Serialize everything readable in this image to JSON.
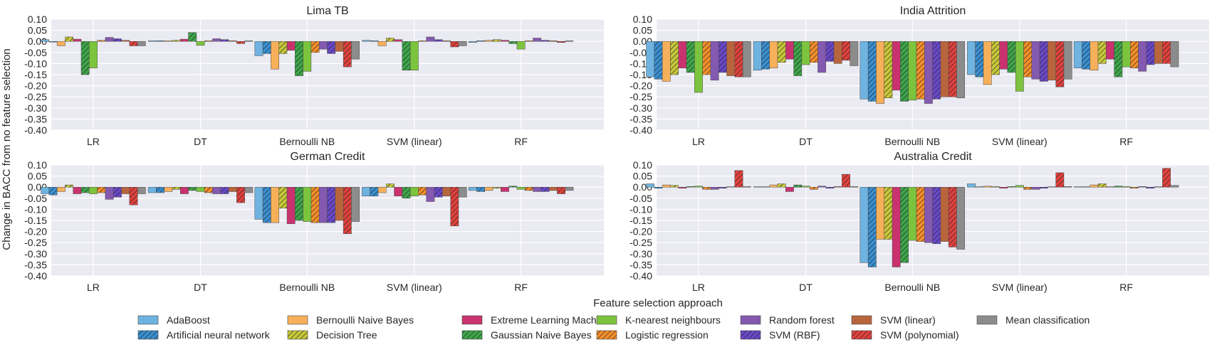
{
  "figure": {
    "ylabel": "Change in BACC from no feature selection",
    "xlabel": "Feature selection approach"
  },
  "legend": [
    {
      "name": "AdaBoost",
      "color": "#6fb3e0",
      "hatch": false
    },
    {
      "name": "Artificial neural network",
      "color": "#3a8fd0",
      "hatch": true
    },
    {
      "name": "Bernoulli Naive Bayes",
      "color": "#f7b05a",
      "hatch": false
    },
    {
      "name": "Decision Tree",
      "color": "#c8c83a",
      "hatch": true
    },
    {
      "name": "Extreme Learning Machine",
      "color": "#c8336f",
      "hatch": false
    },
    {
      "name": "Gaussian Naive Bayes",
      "color": "#3ea54a",
      "hatch": true
    },
    {
      "name": "K-nearest neighbours",
      "color": "#7cc43d",
      "hatch": false
    },
    {
      "name": "Logistic regression",
      "color": "#f58f2a",
      "hatch": true
    },
    {
      "name": "Random forest",
      "color": "#8459b0",
      "hatch": false
    },
    {
      "name": "SVM (RBF)",
      "color": "#6a48c8",
      "hatch": true
    },
    {
      "name": "SVM (linear)",
      "color": "#b8653d",
      "hatch": false
    },
    {
      "name": "SVM (polynomial)",
      "color": "#e0413d",
      "hatch": true
    },
    {
      "name": "Mean classification",
      "color": "#8c8c8c",
      "hatch": false
    }
  ],
  "chart_data": [
    {
      "type": "bar",
      "title": "Lima TB",
      "categories": [
        "LR",
        "DT",
        "Bernoulli NB",
        "SVM (linear)",
        "RF"
      ],
      "ylim": [
        -0.4,
        0.1
      ],
      "yticks": [
        "0.10",
        "0.05",
        "0.00",
        "-0.05",
        "-0.10",
        "-0.15",
        "-0.20",
        "-0.25",
        "-0.30",
        "-0.35",
        "-0.40"
      ],
      "values": [
        [
          0.008,
          -0.003,
          -0.02,
          0.02,
          0.01,
          -0.15,
          -0.12,
          0.005,
          0.018,
          0.012,
          0.005,
          -0.02,
          -0.02
        ],
        [
          0.003,
          0.003,
          0.003,
          0.005,
          0.01,
          0.04,
          -0.018,
          0.003,
          0.012,
          0.008,
          0.003,
          -0.01,
          0.003
        ],
        [
          -0.065,
          -0.055,
          -0.125,
          -0.055,
          -0.04,
          -0.155,
          -0.135,
          -0.05,
          -0.035,
          -0.055,
          -0.045,
          -0.115,
          -0.08
        ],
        [
          0.005,
          0.003,
          -0.02,
          0.015,
          0.008,
          -0.13,
          -0.13,
          0.003,
          0.02,
          0.008,
          0.003,
          -0.025,
          -0.02
        ],
        [
          -0.005,
          0.003,
          0.005,
          0.008,
          0.005,
          -0.01,
          -0.035,
          0.003,
          0.015,
          0.005,
          0.003,
          -0.005,
          0.003
        ]
      ]
    },
    {
      "type": "bar",
      "title": "India Attrition",
      "categories": [
        "LR",
        "DT",
        "Bernoulli NB",
        "SVM (linear)",
        "RF"
      ],
      "ylim": [
        -0.4,
        0.1
      ],
      "yticks": [
        "0.10",
        "0.05",
        "0.00",
        "-0.05",
        "-0.10",
        "-0.15",
        "-0.20",
        "-0.25",
        "-0.30",
        "-0.35",
        "-0.40"
      ],
      "values": [
        [
          -0.16,
          -0.17,
          -0.18,
          -0.15,
          -0.12,
          -0.14,
          -0.23,
          -0.15,
          -0.175,
          -0.14,
          -0.155,
          -0.16,
          -0.16
        ],
        [
          -0.13,
          -0.125,
          -0.12,
          -0.095,
          -0.08,
          -0.155,
          -0.105,
          -0.095,
          -0.14,
          -0.09,
          -0.1,
          -0.085,
          -0.11
        ],
        [
          -0.26,
          -0.27,
          -0.28,
          -0.255,
          -0.22,
          -0.27,
          -0.265,
          -0.26,
          -0.28,
          -0.26,
          -0.25,
          -0.25,
          -0.255
        ],
        [
          -0.15,
          -0.16,
          -0.195,
          -0.15,
          -0.125,
          -0.14,
          -0.225,
          -0.16,
          -0.17,
          -0.18,
          -0.175,
          -0.205,
          -0.17
        ],
        [
          -0.12,
          -0.125,
          -0.13,
          -0.1,
          -0.08,
          -0.16,
          -0.115,
          -0.12,
          -0.135,
          -0.105,
          -0.1,
          -0.1,
          -0.115
        ]
      ]
    },
    {
      "type": "bar",
      "title": "German Credit",
      "categories": [
        "LR",
        "DT",
        "Bernoulli NB",
        "SVM (linear)",
        "RF"
      ],
      "ylim": [
        -0.4,
        0.1
      ],
      "yticks": [
        "0.10",
        "0.05",
        "0.00",
        "-0.05",
        "-0.10",
        "-0.15",
        "-0.20",
        "-0.25",
        "-0.30",
        "-0.35",
        "-0.40"
      ],
      "values": [
        [
          -0.03,
          -0.035,
          -0.02,
          0.01,
          -0.03,
          -0.025,
          -0.03,
          -0.025,
          -0.055,
          -0.045,
          -0.03,
          -0.08,
          -0.03
        ],
        [
          -0.025,
          -0.025,
          -0.02,
          -0.01,
          -0.03,
          -0.015,
          -0.02,
          -0.025,
          -0.03,
          -0.03,
          -0.02,
          -0.07,
          -0.025
        ],
        [
          -0.145,
          -0.16,
          -0.16,
          -0.095,
          -0.165,
          -0.15,
          -0.155,
          -0.16,
          -0.16,
          -0.16,
          -0.15,
          -0.21,
          -0.155
        ],
        [
          -0.04,
          -0.04,
          -0.025,
          0.015,
          -0.04,
          -0.05,
          -0.04,
          -0.035,
          -0.065,
          -0.045,
          -0.04,
          -0.175,
          -0.045
        ],
        [
          -0.015,
          -0.02,
          -0.015,
          -0.005,
          -0.02,
          0.005,
          -0.01,
          -0.015,
          -0.02,
          -0.02,
          -0.015,
          -0.03,
          -0.015
        ]
      ]
    },
    {
      "type": "bar",
      "title": "Australia Credit",
      "categories": [
        "LR",
        "DT",
        "Bernoulli NB",
        "SVM (linear)",
        "RF"
      ],
      "ylim": [
        -0.4,
        0.1
      ],
      "yticks": [
        "0.10",
        "0.05",
        "0.00",
        "-0.05",
        "-0.10",
        "-0.15",
        "-0.20",
        "-0.25",
        "-0.30",
        "-0.35",
        "-0.40"
      ],
      "values": [
        [
          0.015,
          -0.005,
          0.01,
          0.008,
          -0.005,
          0.003,
          0.005,
          -0.01,
          -0.01,
          -0.005,
          0.002,
          0.075,
          0.003
        ],
        [
          0.002,
          0.002,
          0.01,
          0.015,
          -0.02,
          0.01,
          0.005,
          -0.01,
          0.005,
          -0.005,
          0.003,
          0.058,
          0.003
        ],
        [
          -0.34,
          -0.36,
          -0.235,
          -0.235,
          -0.36,
          -0.34,
          -0.24,
          -0.245,
          -0.25,
          -0.255,
          -0.245,
          -0.27,
          -0.28
        ],
        [
          0.015,
          0.002,
          0.005,
          0.003,
          -0.005,
          0.003,
          0.008,
          -0.01,
          -0.01,
          -0.005,
          0.002,
          0.065,
          0.003
        ],
        [
          0.002,
          0.002,
          0.01,
          0.015,
          0.002,
          0.005,
          0.003,
          -0.005,
          0.003,
          -0.005,
          0.002,
          0.085,
          0.008
        ]
      ]
    }
  ]
}
